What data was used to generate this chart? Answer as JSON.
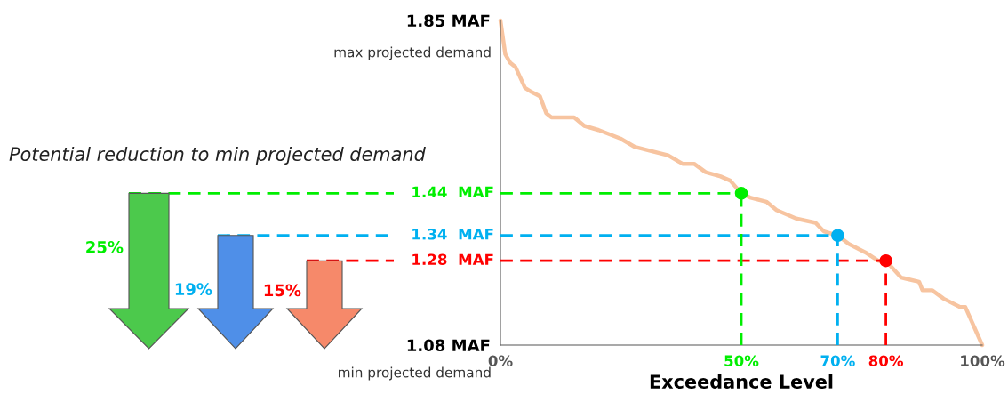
{
  "chart_data": {
    "type": "line",
    "xlabel": "Exceedance Level",
    "xlim": [
      0,
      100
    ],
    "xticks": [
      {
        "value": 0,
        "label": "0%"
      },
      {
        "value": 50,
        "label": "50%"
      },
      {
        "value": 70,
        "label": "70%"
      },
      {
        "value": 80,
        "label": "80%"
      },
      {
        "value": 100,
        "label": "100%"
      }
    ],
    "ylim": [
      1.08,
      1.85
    ],
    "yticks": [
      {
        "value": 1.08,
        "label": "1.08 MAF"
      },
      {
        "value": 1.85,
        "label": "1.85 MAF"
      }
    ],
    "grid": false,
    "series": [
      {
        "color": "#f7c4a0",
        "x": [
          0,
          1.0,
          2.0,
          3.1,
          5.1,
          6.5,
          8.2,
          9.5,
          10.6,
          12.6,
          15.3,
          17.4,
          20.4,
          24.9,
          27.9,
          31.3,
          34.8,
          37.8,
          40.2,
          42.6,
          45.7,
          47.7,
          50,
          51.8,
          55.2,
          57.3,
          61.4,
          65.4,
          67.1,
          70,
          72.3,
          75.7,
          78.4,
          80,
          83.2,
          86.9,
          87.6,
          89.6,
          92,
          95.4,
          96.5,
          100
        ],
        "values": [
          1.85,
          1.77,
          1.75,
          1.74,
          1.69,
          1.68,
          1.67,
          1.63,
          1.62,
          1.62,
          1.62,
          1.6,
          1.59,
          1.57,
          1.55,
          1.54,
          1.53,
          1.51,
          1.51,
          1.49,
          1.48,
          1.47,
          1.44,
          1.43,
          1.42,
          1.4,
          1.38,
          1.37,
          1.35,
          1.34,
          1.32,
          1.3,
          1.28,
          1.28,
          1.24,
          1.23,
          1.21,
          1.21,
          1.19,
          1.17,
          1.17,
          1.08
        ]
      },
      {
        "type": "scatter",
        "x": [
          50,
          70,
          80
        ],
        "values": [
          1.44,
          1.34,
          1.28
        ],
        "colors": [
          "#00ee00",
          "#00b0f0",
          "#ff0000"
        ]
      }
    ],
    "ref_lines": [
      {
        "axis": "y",
        "value": 1.44,
        "label": "1.44  MAF",
        "color": "#00ee00",
        "line_style": "dashed"
      },
      {
        "axis": "y",
        "value": 1.34,
        "label": "1.34  MAF",
        "color": "#00b0f0",
        "line_style": "dashed"
      },
      {
        "axis": "y",
        "value": 1.28,
        "label": "1.28  MAF",
        "color": "#ff0000",
        "line_style": "dashed"
      },
      {
        "axis": "x",
        "value": 50,
        "color": "#00ee00",
        "line_style": "dashed"
      },
      {
        "axis": "x",
        "value": 70,
        "color": "#00b0f0",
        "line_style": "dashed"
      },
      {
        "axis": "x",
        "value": 80,
        "color": "#ff0000",
        "line_style": "dashed"
      }
    ],
    "annotations": [
      "Potential reduction to min projected demand",
      "max projected demand",
      "min projected demand",
      "25%",
      "19%",
      "15%"
    ]
  }
}
